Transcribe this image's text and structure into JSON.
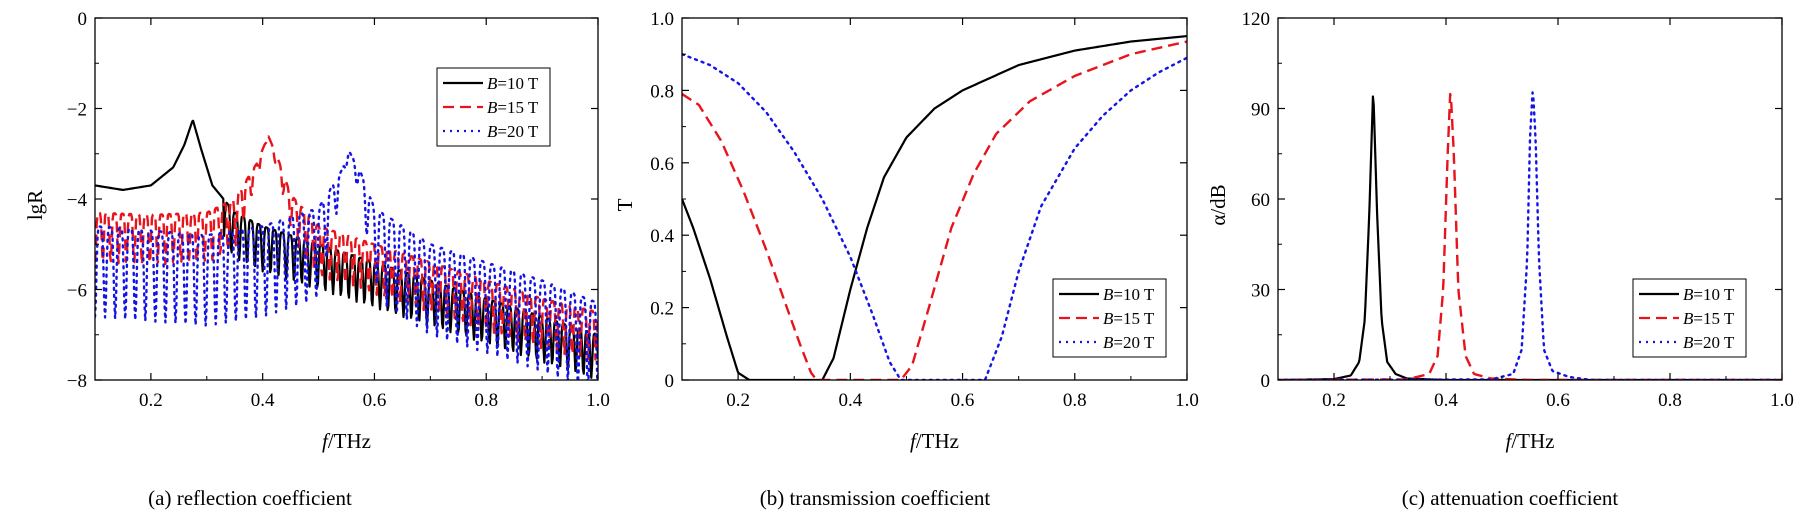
{
  "colors": {
    "black": "#000000",
    "red": "#e8141b",
    "blue": "#1414e6"
  },
  "chart_data": [
    {
      "panel": "a",
      "type": "line",
      "caption": "(a) reflection coefficient",
      "xlabel": "f/THz",
      "ylabel": "lgR",
      "xlim": [
        0.1,
        1.0
      ],
      "ylim": [
        -8,
        0
      ],
      "xticks": [
        0.2,
        0.4,
        0.6,
        0.8,
        1.0
      ],
      "xticklabels": [
        "0.2",
        "0.4",
        "0.6",
        "0.8",
        "1.0"
      ],
      "yticks": [
        -8,
        -6,
        -4,
        -2,
        0
      ],
      "yticklabels": [
        "−8",
        "−6",
        "−4",
        "−2",
        "0"
      ],
      "grid": false,
      "legend_position": "top-right",
      "series": [
        {
          "name": "B=10 T",
          "color": "black",
          "style": "solid",
          "peak_x": 0.275,
          "points": [
            [
              0.1,
              -3.7
            ],
            [
              0.15,
              -3.8
            ],
            [
              0.2,
              -3.7
            ],
            [
              0.24,
              -3.3
            ],
            [
              0.26,
              -2.8
            ],
            [
              0.275,
              -2.25
            ],
            [
              0.29,
              -2.9
            ],
            [
              0.31,
              -3.7
            ],
            [
              0.35,
              -4.3
            ],
            [
              0.4,
              -4.6
            ],
            [
              0.5,
              -5.0
            ],
            [
              0.6,
              -5.4
            ],
            [
              0.7,
              -5.8
            ],
            [
              0.8,
              -6.2
            ],
            [
              0.9,
              -6.6
            ],
            [
              1.0,
              -7.0
            ]
          ],
          "ripple": {
            "from": 0.33,
            "to": 1.0,
            "period": 0.014,
            "depth": 1.0
          }
        },
        {
          "name": "B=15 T",
          "color": "red",
          "style": "dashed",
          "peak_x": 0.41,
          "points": [
            [
              0.1,
              -4.3
            ],
            [
              0.2,
              -4.35
            ],
            [
              0.3,
              -4.3
            ],
            [
              0.35,
              -4.0
            ],
            [
              0.39,
              -3.2
            ],
            [
              0.41,
              -2.6
            ],
            [
              0.43,
              -3.2
            ],
            [
              0.45,
              -3.9
            ],
            [
              0.5,
              -4.6
            ],
            [
              0.6,
              -5.0
            ],
            [
              0.7,
              -5.4
            ],
            [
              0.8,
              -5.8
            ],
            [
              0.9,
              -6.2
            ],
            [
              1.0,
              -6.5
            ]
          ],
          "ripple": {
            "from": 0.1,
            "to": 1.0,
            "period": 0.014,
            "depth": 1.1
          }
        },
        {
          "name": "B=20 T",
          "color": "blue",
          "style": "dotted",
          "peak_x": 0.555,
          "points": [
            [
              0.1,
              -4.6
            ],
            [
              0.2,
              -4.7
            ],
            [
              0.3,
              -4.8
            ],
            [
              0.4,
              -4.6
            ],
            [
              0.5,
              -4.2
            ],
            [
              0.54,
              -3.4
            ],
            [
              0.555,
              -2.95
            ],
            [
              0.575,
              -3.4
            ],
            [
              0.6,
              -4.2
            ],
            [
              0.7,
              -5.0
            ],
            [
              0.8,
              -5.4
            ],
            [
              0.9,
              -5.8
            ],
            [
              1.0,
              -6.3
            ]
          ],
          "ripple": {
            "from": 0.1,
            "to": 1.0,
            "period": 0.018,
            "depth": 2.0
          }
        }
      ]
    },
    {
      "panel": "b",
      "type": "line",
      "caption": "(b) transmission coefficient",
      "xlabel": "f/THz",
      "ylabel": "T",
      "xlim": [
        0.1,
        1.0
      ],
      "ylim": [
        0,
        1.0
      ],
      "xticks": [
        0.2,
        0.4,
        0.6,
        0.8,
        1.0
      ],
      "xticklabels": [
        "0.2",
        "0.4",
        "0.6",
        "0.8",
        "1.0"
      ],
      "yticks": [
        0,
        0.2,
        0.4,
        0.6,
        0.8,
        1.0
      ],
      "yticklabels": [
        "0",
        "0.2",
        "0.4",
        "0.6",
        "0.8",
        "1.0"
      ],
      "grid": false,
      "legend_position": "bottom-right",
      "series": [
        {
          "name": "B=10 T",
          "color": "black",
          "style": "solid",
          "points": [
            [
              0.1,
              0.5
            ],
            [
              0.12,
              0.42
            ],
            [
              0.15,
              0.28
            ],
            [
              0.18,
              0.12
            ],
            [
              0.2,
              0.02
            ],
            [
              0.22,
              0.0
            ],
            [
              0.35,
              0.0
            ],
            [
              0.37,
              0.06
            ],
            [
              0.4,
              0.25
            ],
            [
              0.43,
              0.42
            ],
            [
              0.46,
              0.56
            ],
            [
              0.5,
              0.67
            ],
            [
              0.55,
              0.75
            ],
            [
              0.6,
              0.8
            ],
            [
              0.7,
              0.87
            ],
            [
              0.8,
              0.91
            ],
            [
              0.9,
              0.935
            ],
            [
              1.0,
              0.95
            ]
          ]
        },
        {
          "name": "B=15 T",
          "color": "red",
          "style": "dashed",
          "points": [
            [
              0.1,
              0.79
            ],
            [
              0.13,
              0.76
            ],
            [
              0.17,
              0.66
            ],
            [
              0.21,
              0.52
            ],
            [
              0.25,
              0.36
            ],
            [
              0.28,
              0.23
            ],
            [
              0.31,
              0.1
            ],
            [
              0.33,
              0.02
            ],
            [
              0.34,
              0.0
            ],
            [
              0.49,
              0.0
            ],
            [
              0.51,
              0.04
            ],
            [
              0.54,
              0.2
            ],
            [
              0.58,
              0.42
            ],
            [
              0.62,
              0.57
            ],
            [
              0.66,
              0.68
            ],
            [
              0.72,
              0.77
            ],
            [
              0.8,
              0.84
            ],
            [
              0.9,
              0.9
            ],
            [
              1.0,
              0.935
            ]
          ]
        },
        {
          "name": "B=20 T",
          "color": "blue",
          "style": "dotted",
          "points": [
            [
              0.1,
              0.9
            ],
            [
              0.15,
              0.87
            ],
            [
              0.2,
              0.82
            ],
            [
              0.25,
              0.74
            ],
            [
              0.3,
              0.63
            ],
            [
              0.35,
              0.5
            ],
            [
              0.4,
              0.34
            ],
            [
              0.44,
              0.18
            ],
            [
              0.47,
              0.05
            ],
            [
              0.49,
              0.0
            ],
            [
              0.64,
              0.0
            ],
            [
              0.67,
              0.12
            ],
            [
              0.7,
              0.3
            ],
            [
              0.74,
              0.48
            ],
            [
              0.8,
              0.64
            ],
            [
              0.85,
              0.73
            ],
            [
              0.9,
              0.8
            ],
            [
              0.95,
              0.85
            ],
            [
              1.0,
              0.89
            ]
          ]
        }
      ]
    },
    {
      "panel": "c",
      "type": "line",
      "caption": "(c) attenuation coefficient",
      "xlabel": "f/THz",
      "ylabel": "α/dB",
      "xlim": [
        0.1,
        1.0
      ],
      "ylim": [
        0,
        120
      ],
      "xticks": [
        0.2,
        0.4,
        0.6,
        0.8,
        1.0
      ],
      "xticklabels": [
        "0.2",
        "0.4",
        "0.6",
        "0.8",
        "1.0"
      ],
      "yticks": [
        0,
        30,
        60,
        90,
        120
      ],
      "yticklabels": [
        "0",
        "30",
        "60",
        "90",
        "120"
      ],
      "grid": false,
      "legend_position": "bottom-right",
      "series": [
        {
          "name": "B=10 T",
          "color": "black",
          "style": "solid",
          "points": [
            [
              0.1,
              0
            ],
            [
              0.2,
              0.3
            ],
            [
              0.23,
              1.5
            ],
            [
              0.245,
              6
            ],
            [
              0.255,
              20
            ],
            [
              0.263,
              55
            ],
            [
              0.27,
              97
            ],
            [
              0.277,
              55
            ],
            [
              0.285,
              20
            ],
            [
              0.295,
              6
            ],
            [
              0.31,
              2
            ],
            [
              0.33,
              0.5
            ],
            [
              0.4,
              0
            ],
            [
              1.0,
              0
            ]
          ]
        },
        {
          "name": "B=15 T",
          "color": "red",
          "style": "dashed",
          "points": [
            [
              0.1,
              0
            ],
            [
              0.33,
              0.2
            ],
            [
              0.37,
              2
            ],
            [
              0.385,
              8
            ],
            [
              0.395,
              30
            ],
            [
              0.403,
              75
            ],
            [
              0.408,
              97
            ],
            [
              0.414,
              75
            ],
            [
              0.422,
              30
            ],
            [
              0.435,
              8
            ],
            [
              0.45,
              2
            ],
            [
              0.48,
              0.5
            ],
            [
              0.55,
              0
            ],
            [
              1.0,
              0
            ]
          ]
        },
        {
          "name": "B=20 T",
          "color": "blue",
          "style": "dotted",
          "points": [
            [
              0.1,
              0
            ],
            [
              0.48,
              0.2
            ],
            [
              0.52,
              2
            ],
            [
              0.535,
              10
            ],
            [
              0.545,
              40
            ],
            [
              0.55,
              80
            ],
            [
              0.555,
              97
            ],
            [
              0.56,
              80
            ],
            [
              0.566,
              40
            ],
            [
              0.575,
              10
            ],
            [
              0.59,
              3
            ],
            [
              0.62,
              1
            ],
            [
              0.66,
              0
            ],
            [
              1.0,
              0
            ]
          ]
        }
      ]
    }
  ]
}
